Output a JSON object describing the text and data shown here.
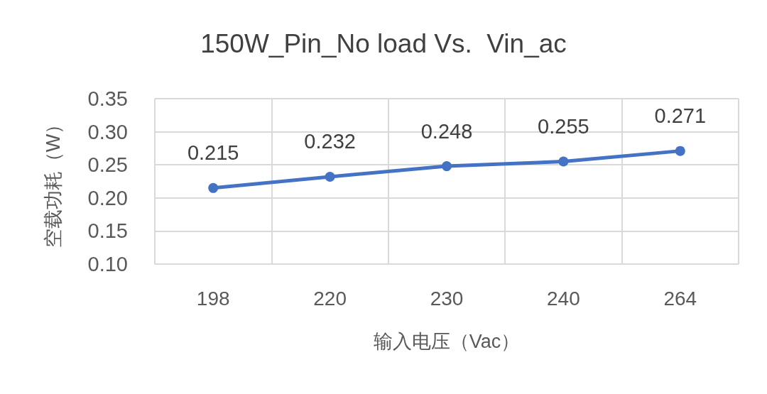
{
  "chart_data": {
    "type": "line",
    "title": "150W_Pin_No load Vs.  Vin_ac",
    "xlabel": "输入电压（Vac）",
    "ylabel": "空载功耗（W）",
    "categories": [
      "198",
      "220",
      "230",
      "240",
      "264"
    ],
    "series": [
      {
        "color": "#4472c4",
        "values": [
          0.215,
          0.232,
          0.248,
          0.255,
          0.271
        ]
      }
    ],
    "ylim": [
      0.1,
      0.35
    ],
    "yticks": [
      {
        "value": 0.1,
        "label": "0.10"
      },
      {
        "value": 0.15,
        "label": "0.15"
      },
      {
        "value": 0.2,
        "label": "0.20"
      },
      {
        "value": 0.25,
        "label": "0.25"
      },
      {
        "value": 0.3,
        "label": "0.30"
      },
      {
        "value": 0.35,
        "label": "0.35"
      }
    ],
    "grid": true,
    "marker": "circle",
    "line_style": "solid",
    "data_labels": true
  }
}
